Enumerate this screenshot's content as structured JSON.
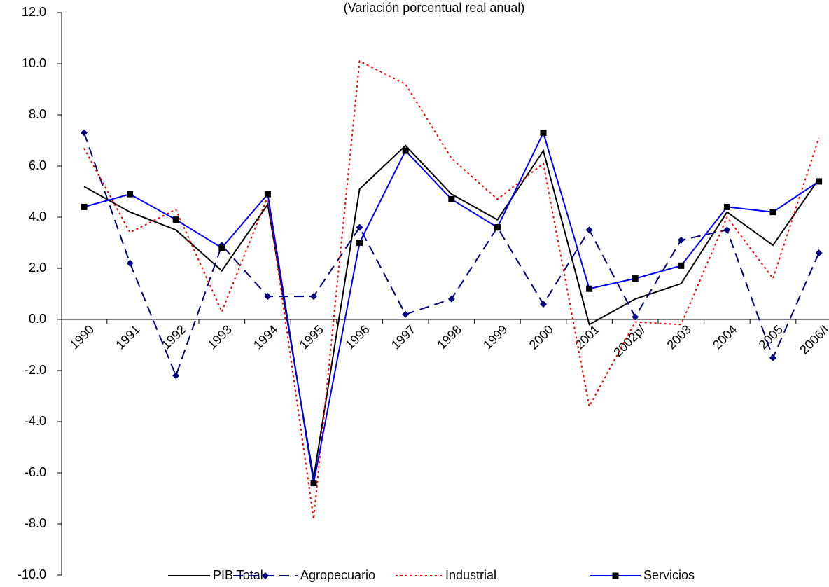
{
  "chart_data": {
    "type": "line",
    "title": "(Variación porcentual real anual)",
    "categories": [
      "1990",
      "1991",
      "1992",
      "1993",
      "1994",
      "1995",
      "1996",
      "1997",
      "1998",
      "1999",
      "2000",
      "2001",
      "2002p/",
      "2003",
      "2004",
      "2005",
      "2006/I"
    ],
    "series": [
      {
        "name": "PIB Total",
        "color": "#000000",
        "dash": "solid",
        "marker": "none",
        "values": [
          5.2,
          4.2,
          3.5,
          1.9,
          4.5,
          -6.2,
          5.1,
          6.8,
          4.9,
          3.9,
          6.6,
          -0.2,
          0.8,
          1.4,
          4.2,
          2.9,
          5.5
        ]
      },
      {
        "name": "Agropecuario",
        "color": "#000080",
        "dash": "dashed",
        "marker": "diamond",
        "values": [
          7.3,
          2.2,
          -2.2,
          2.9,
          0.9,
          0.9,
          3.6,
          0.2,
          0.8,
          3.6,
          0.6,
          3.5,
          0.1,
          3.1,
          3.5,
          -1.5,
          2.6
        ]
      },
      {
        "name": "Industrial",
        "color": "#ff0000",
        "dash": "dotted",
        "marker": "none",
        "values": [
          6.7,
          3.4,
          4.3,
          0.3,
          4.8,
          -7.8,
          10.1,
          9.2,
          6.3,
          4.7,
          6.1,
          -3.4,
          -0.1,
          -0.2,
          4.0,
          1.6,
          7.1
        ]
      },
      {
        "name": "Servicios",
        "color": "#0000ff",
        "dash": "solid",
        "marker": "square",
        "values": [
          4.4,
          4.9,
          3.9,
          2.8,
          4.9,
          -6.4,
          3.0,
          6.6,
          4.7,
          3.6,
          7.3,
          1.2,
          1.6,
          2.1,
          4.4,
          4.2,
          5.4
        ]
      }
    ],
    "ylim": [
      -10,
      12
    ],
    "yticks": [
      {
        "value": -10,
        "label": "-10.0"
      },
      {
        "value": -8,
        "label": "-8.0"
      },
      {
        "value": -6,
        "label": "-6.0"
      },
      {
        "value": -4,
        "label": "-4.0"
      },
      {
        "value": -2,
        "label": "-2.0"
      },
      {
        "value": 0,
        "label": "0.0"
      },
      {
        "value": 2,
        "label": "2.0"
      },
      {
        "value": 4,
        "label": "4.0"
      },
      {
        "value": 6,
        "label": "6.0"
      },
      {
        "value": 8,
        "label": "8.0"
      },
      {
        "value": 10,
        "label": "10.0"
      },
      {
        "value": 12,
        "label": "12.0"
      }
    ],
    "grid": false,
    "legend": "bottom"
  }
}
